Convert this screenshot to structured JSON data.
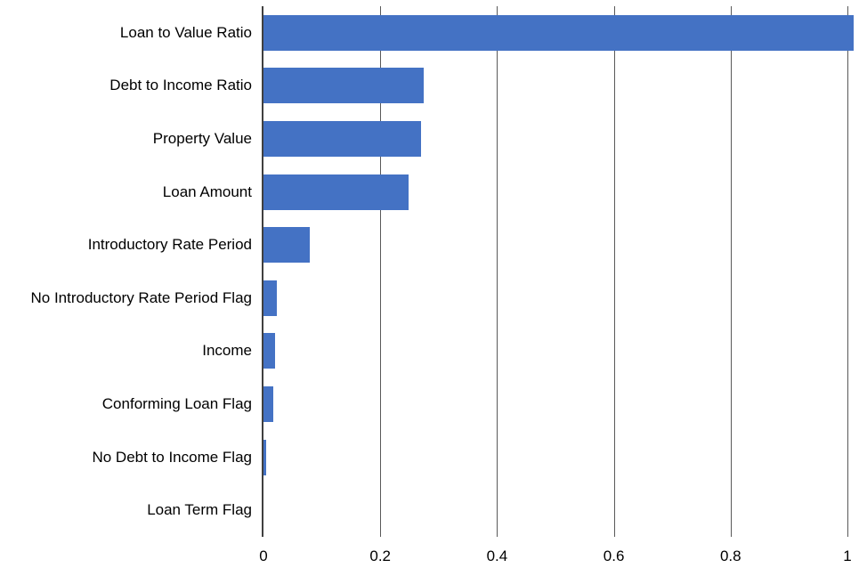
{
  "chart_data": {
    "type": "bar",
    "orientation": "horizontal",
    "title": "",
    "xlabel": "",
    "ylabel": "",
    "categories": [
      "Loan to Value Ratio",
      "Debt to Income Ratio",
      "Property Value",
      "Loan Amount",
      "Introductory Rate Period",
      "No Introductory Rate Period Flag",
      "Income",
      "Conforming Loan Flag",
      "No Debt to Income Flag",
      "Loan Term Flag"
    ],
    "values": [
      1.01,
      0.275,
      0.27,
      0.248,
      0.079,
      0.023,
      0.02,
      0.017,
      0.005,
      0
    ],
    "xticks": [
      0,
      0.2,
      0.4,
      0.6,
      0.8,
      1
    ],
    "xtick_labels": [
      "0",
      "0.2",
      "0.4",
      "0.6",
      "0.8",
      "1"
    ],
    "xlim": [
      0,
      1.034
    ],
    "grid": "vertical-gridlines-on",
    "legend": "none",
    "colors": {
      "bar": "#4472C4",
      "gridline": "#595959",
      "axis": "#404040",
      "text": "#000000",
      "background": "#ffffff"
    }
  }
}
